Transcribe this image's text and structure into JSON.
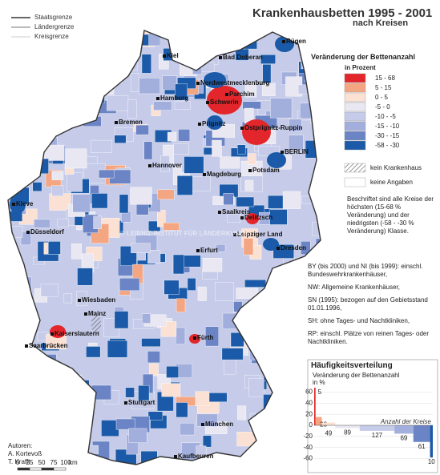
{
  "title": "Krankenhausbetten 1995 - 2001",
  "subtitle": "nach Kreisen",
  "line_legend": [
    "Staatsgrenze",
    "Ländergrenze",
    "Kreisgrenze"
  ],
  "legend": {
    "title": "Veränderung der Bettenanzahl",
    "unit": "in Prozent",
    "classes": [
      {
        "label": "15 - 68",
        "range": [
          15,
          68
        ],
        "color": "#e3262b"
      },
      {
        "label": "5 - 15",
        "range": [
          5,
          15
        ],
        "color": "#f4a582"
      },
      {
        "label": "0 - 5",
        "range": [
          0,
          5
        ],
        "color": "#fbe0d4"
      },
      {
        "label": "-5 - 0",
        "range": [
          -5,
          0
        ],
        "color": "#e9e8f2"
      },
      {
        "label": "-10 - -5",
        "range": [
          -10,
          -5
        ],
        "color": "#c5cbe8"
      },
      {
        "label": "-15 - -10",
        "range": [
          -15,
          -10
        ],
        "color": "#a2afdd"
      },
      {
        "label": "-30 - -15",
        "range": [
          -30,
          -15
        ],
        "color": "#6b84c5"
      },
      {
        "label": "-58 - -30",
        "range": [
          -58,
          -30
        ],
        "color": "#1b5aa8"
      }
    ],
    "extra": [
      "kein Krankenhaus",
      "keine Angaben"
    ]
  },
  "note": "Beschriftet sind alle Kreise der höchsten (15-68 % Veränderung) und der niedrigsten (-58 - -30 % Veränderung) Klasse.",
  "footnotes": [
    "BY (bis 2000) und NI (bis 1999): einschl. Bundeswehrkrankenhäuser,",
    "NW: Allgemeine Krankenhäuser,",
    "SN (1995): bezogen auf den Gebietsstand 01.01.1996,",
    "SH: ohne Tages- und Nachtkliniken,",
    "RP: einschl. Plätze von reinen Tages- oder Nachtkliniken."
  ],
  "cities": [
    "Rügen",
    "Kiel",
    "Bad Doberan",
    "Nordwestmecklenburg",
    "Parchim",
    "Hamburg",
    "Schwerin",
    "Prignitz",
    "Ostprignitz-Ruppin",
    "Bremen",
    "BERLIN",
    "Potsdam",
    "Hannover",
    "Magdeburg",
    "Kleve",
    "Saalkreis",
    "Delitzsch",
    "Düsseldorf",
    "Leipziger Land",
    "Erfurt",
    "Dresden",
    "Wiesbaden",
    "Mainz",
    "Kaiserslautern",
    "Saarbrücken",
    "Fürth",
    "Stuttgart",
    "München",
    "Kaufbeuren"
  ],
  "watermark": "© LEIBNIZ-INSTITUT FÜR LÄNDERKUNDE",
  "authors": [
    "Autoren:",
    "A. Kortevoß",
    "T. Krafft"
  ],
  "scale": {
    "ticks": [
      0,
      25,
      50,
      75,
      100
    ],
    "unit": "km"
  },
  "histogram": {
    "title": "Häufigkeitsverteilung",
    "subtitle": "Veränderung der Bettenanzahl",
    "unit": "in %",
    "x_label": "Anzahl der Kreise",
    "ylim": [
      -68,
      68
    ],
    "yticks": [
      60,
      40,
      20,
      0,
      -20,
      -40,
      -60
    ],
    "counts": [
      5,
      23,
      49,
      89,
      127,
      69,
      61,
      10
    ]
  }
}
